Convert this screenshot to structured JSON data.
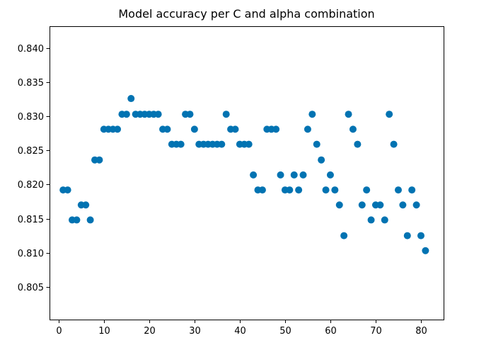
{
  "chart_data": {
    "type": "scatter",
    "title": "Model accuracy per C and alpha combination",
    "xlabel": "",
    "ylabel": "",
    "xlim": [
      -2.0,
      85.0
    ],
    "ylim": [
      0.8002,
      0.8432
    ],
    "xticks": [
      0,
      10,
      20,
      30,
      40,
      50,
      60,
      70,
      80
    ],
    "yticks": [
      0.805,
      0.81,
      0.815,
      0.82,
      0.825,
      0.83,
      0.835,
      0.84
    ],
    "xtick_labels": [
      "0",
      "10",
      "20",
      "30",
      "40",
      "50",
      "60",
      "70",
      "80"
    ],
    "ytick_labels": [
      "0.805",
      "0.810",
      "0.815",
      "0.820",
      "0.825",
      "0.830",
      "0.835",
      "0.840"
    ],
    "grid": false,
    "marker_color": "#0173b2",
    "series": [
      {
        "x": [
          1,
          2,
          3,
          4,
          5,
          6,
          7,
          8,
          9,
          10,
          11,
          12,
          13,
          14,
          15,
          16,
          17,
          18,
          19,
          20,
          21,
          22,
          23,
          24,
          25,
          26,
          27,
          28,
          29,
          30,
          31,
          32,
          33,
          34,
          35,
          36,
          37,
          38,
          39,
          40,
          41,
          42,
          43,
          44,
          45,
          46,
          47,
          48,
          49,
          50,
          51,
          52,
          53,
          54,
          55,
          56,
          57,
          58,
          59,
          60,
          61,
          62,
          63,
          64,
          65,
          66,
          67,
          68,
          69,
          70,
          71,
          72,
          73,
          74,
          75,
          76,
          77,
          78,
          79,
          80,
          81
        ],
        "y": [
          0.8192,
          0.8192,
          0.8148,
          0.8148,
          0.817,
          0.817,
          0.8148,
          0.8236,
          0.8236,
          0.8281,
          0.8281,
          0.8281,
          0.8281,
          0.8303,
          0.8303,
          0.8326,
          0.8303,
          0.8303,
          0.8303,
          0.8303,
          0.8303,
          0.8303,
          0.8281,
          0.8281,
          0.8259,
          0.8259,
          0.8259,
          0.8303,
          0.8303,
          0.8281,
          0.8259,
          0.8259,
          0.8259,
          0.8259,
          0.8259,
          0.8259,
          0.8303,
          0.8281,
          0.8281,
          0.8259,
          0.8259,
          0.8259,
          0.8214,
          0.8192,
          0.8192,
          0.8281,
          0.8281,
          0.8281,
          0.8214,
          0.8192,
          0.8192,
          0.8214,
          0.8192,
          0.8214,
          0.8281,
          0.8303,
          0.8259,
          0.8236,
          0.8192,
          0.8214,
          0.8192,
          0.817,
          0.8125,
          0.8303,
          0.8281,
          0.8259,
          0.817,
          0.8192,
          0.8148,
          0.817,
          0.817,
          0.8148,
          0.8303,
          0.8259,
          0.8192,
          0.817,
          0.8125,
          0.8192,
          0.817,
          0.8125,
          0.8103
        ]
      }
    ]
  }
}
